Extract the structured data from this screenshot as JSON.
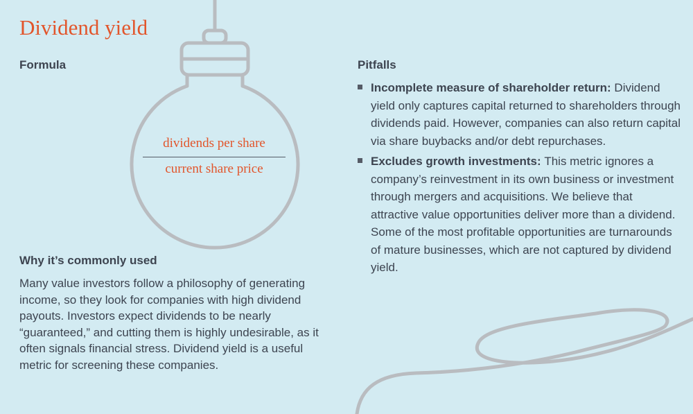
{
  "title": "Dividend yield",
  "formula": {
    "heading": "Formula",
    "numerator": "dividends per share",
    "denominator": "current share price"
  },
  "why": {
    "heading": "Why it’s commonly used",
    "text": "Many value investors follow a philosophy of generating income, so they look for companies with high dividend payouts. Investors expect dividends to be nearly “guaranteed,” and cutting them is highly undesirable, as it often signals financial stress. Dividend yield is a useful metric for screening these companies."
  },
  "pitfalls": {
    "heading": "Pitfalls",
    "items": [
      {
        "term": "Incomplete measure of shareholder return:",
        "text": "Dividend yield only captures capital returned to shareholders through dividends paid. However, companies can also return capital via share buybacks and/or debt repurchases."
      },
      {
        "term": "Excludes growth investments:",
        "text": "This metric ignores a company’s reinvestment in its own business or investment through mergers and acquisitions. We believe that attractive value opportunities deliver more than a dividend. Some of the most profitable opportunities are turnarounds of mature businesses, which are not captured by dividend yield."
      }
    ]
  },
  "colors": {
    "background": "#d3ebf2",
    "accent": "#e2552b",
    "text": "#3d4450",
    "bulb_stroke": "#b9bcc0"
  },
  "icons": [
    "light-bulb-icon",
    "cord-icon",
    "bullet-square-icon"
  ]
}
